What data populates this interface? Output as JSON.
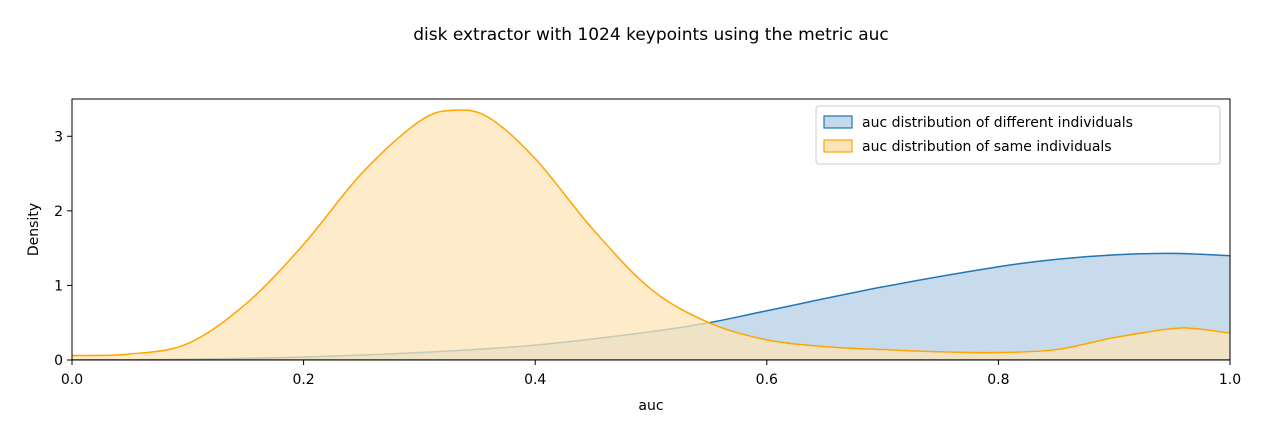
{
  "chart_data": {
    "type": "area",
    "title": "disk extractor with 1024 keypoints using the metric auc",
    "xlabel": "auc",
    "ylabel": "Density",
    "xlim": [
      0.0,
      1.0
    ],
    "ylim": [
      0.0,
      3.5
    ],
    "xticks": [
      0.0,
      0.2,
      0.4,
      0.6,
      0.8,
      1.0
    ],
    "xtick_labels": [
      "0.0",
      "0.2",
      "0.4",
      "0.6",
      "0.8",
      "1.0"
    ],
    "yticks": [
      0,
      1,
      2,
      3
    ],
    "ytick_labels": [
      "0",
      "1",
      "2",
      "3"
    ],
    "grid": false,
    "legend_position": "top-right",
    "series": [
      {
        "name": "auc distribution of different individuals",
        "color": "#1f77b4",
        "fill": "#c4d9ec",
        "x": [
          0.0,
          0.1,
          0.2,
          0.3,
          0.4,
          0.5,
          0.55,
          0.6,
          0.7,
          0.8,
          0.85,
          0.9,
          0.95,
          1.0
        ],
        "y": [
          0.0,
          0.01,
          0.04,
          0.1,
          0.2,
          0.38,
          0.5,
          0.66,
          0.98,
          1.25,
          1.35,
          1.41,
          1.43,
          1.4
        ]
      },
      {
        "name": "auc distribution of same individuals",
        "color": "#ffa500",
        "fill": "#fde4b7",
        "x": [
          0.0,
          0.05,
          0.1,
          0.15,
          0.2,
          0.25,
          0.3,
          0.33,
          0.36,
          0.4,
          0.45,
          0.5,
          0.55,
          0.6,
          0.65,
          0.7,
          0.75,
          0.8,
          0.85,
          0.9,
          0.95,
          0.97,
          1.0
        ],
        "y": [
          0.06,
          0.08,
          0.22,
          0.75,
          1.55,
          2.5,
          3.2,
          3.35,
          3.25,
          2.7,
          1.75,
          0.95,
          0.5,
          0.27,
          0.18,
          0.14,
          0.11,
          0.1,
          0.14,
          0.3,
          0.42,
          0.42,
          0.36
        ]
      }
    ]
  }
}
